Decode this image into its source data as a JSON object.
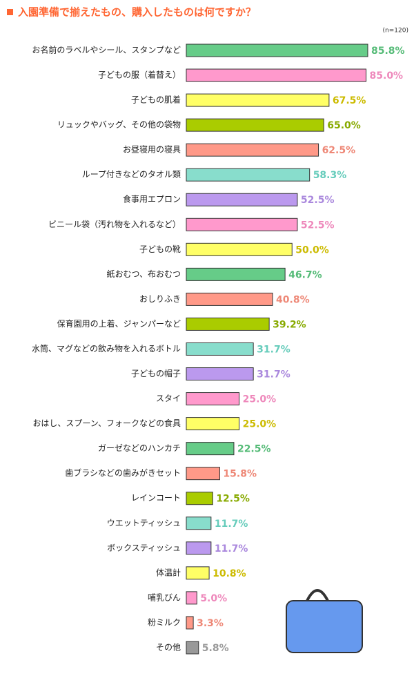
{
  "chart_data": {
    "type": "hbar",
    "title": "入園準備で揃えたもの、購入したものは何ですか？",
    "subtitle": "(n=120)",
    "categories": [
      "お名前のラベルやシール、スタンプなど",
      "子どもの服（着替え）",
      "子どもの肌着",
      "リュックやバッグ、その他の袋物",
      "お昼寝用の寝具",
      "ループ付きなどのタオル類",
      "食事用エプロン",
      "ビニール袋（汚れ物を入れるなど）",
      "子どもの靴",
      "紙おむつ、布おむつ",
      "おしりふき",
      "保育園用の上着、ジャンパーなど",
      "水筒、マグなどの飲み物を入れるボトル",
      "子どもの帽子",
      "スタイ",
      "おはし、スプーン、フォークなどの食具",
      "ガーゼなどのハンカチ",
      "歯ブラシなどの歯みがきセット",
      "レインコート",
      "ウエットティッシュ",
      "ボックスティッシュ",
      "体温計",
      "哺乳びん",
      "粉ミルク",
      "その他"
    ],
    "values": [
      85.8,
      85.0,
      67.5,
      65.0,
      62.5,
      58.3,
      52.5,
      52.5,
      50.0,
      46.7,
      40.8,
      39.2,
      31.7,
      31.7,
      25.0,
      25.0,
      22.5,
      15.8,
      12.5,
      11.7,
      11.7,
      10.8,
      5.0,
      3.3,
      5.8
    ],
    "value_labels": [
      "85.8%",
      "85.0%",
      "67.5%",
      "65.0%",
      "62.5%",
      "58.3%",
      "52.5%",
      "52.5%",
      "50.0%",
      "46.7%",
      "40.8%",
      "39.2%",
      "31.7%",
      "31.7%",
      "25.0%",
      "25.0%",
      "22.5%",
      "15.8%",
      "12.5%",
      "11.7%",
      "11.7%",
      "10.8%",
      "5.0%",
      "3.3%",
      "5.8%"
    ],
    "colors": [
      "#66cc88",
      "#ff99cc",
      "#ffff66",
      "#aacc00",
      "#ff9988",
      "#88ddcc",
      "#bb99ee",
      "#ff99cc",
      "#ffff66",
      "#66cc88",
      "#ff9988",
      "#aacc00",
      "#88ddcc",
      "#bb99ee",
      "#ff99cc",
      "#ffff66",
      "#66cc88",
      "#ff9988",
      "#aacc00",
      "#88ddcc",
      "#bb99ee",
      "#ffff66",
      "#ff99cc",
      "#ff9988",
      "#999999"
    ],
    "label_colors": [
      "#55bb77",
      "#ee88bb",
      "#ccbb00",
      "#88aa00",
      "#ee8877",
      "#66ccbb",
      "#aa88dd",
      "#ee88bb",
      "#ccbb00",
      "#55bb77",
      "#ee8877",
      "#88aa00",
      "#66ccbb",
      "#aa88dd",
      "#ee88bb",
      "#ccbb00",
      "#55bb77",
      "#ee8877",
      "#88aa00",
      "#66ccbb",
      "#aa88dd",
      "#ccbb00",
      "#ee88bb",
      "#ee8877",
      "#999999"
    ],
    "xlim": [
      0,
      100
    ]
  }
}
